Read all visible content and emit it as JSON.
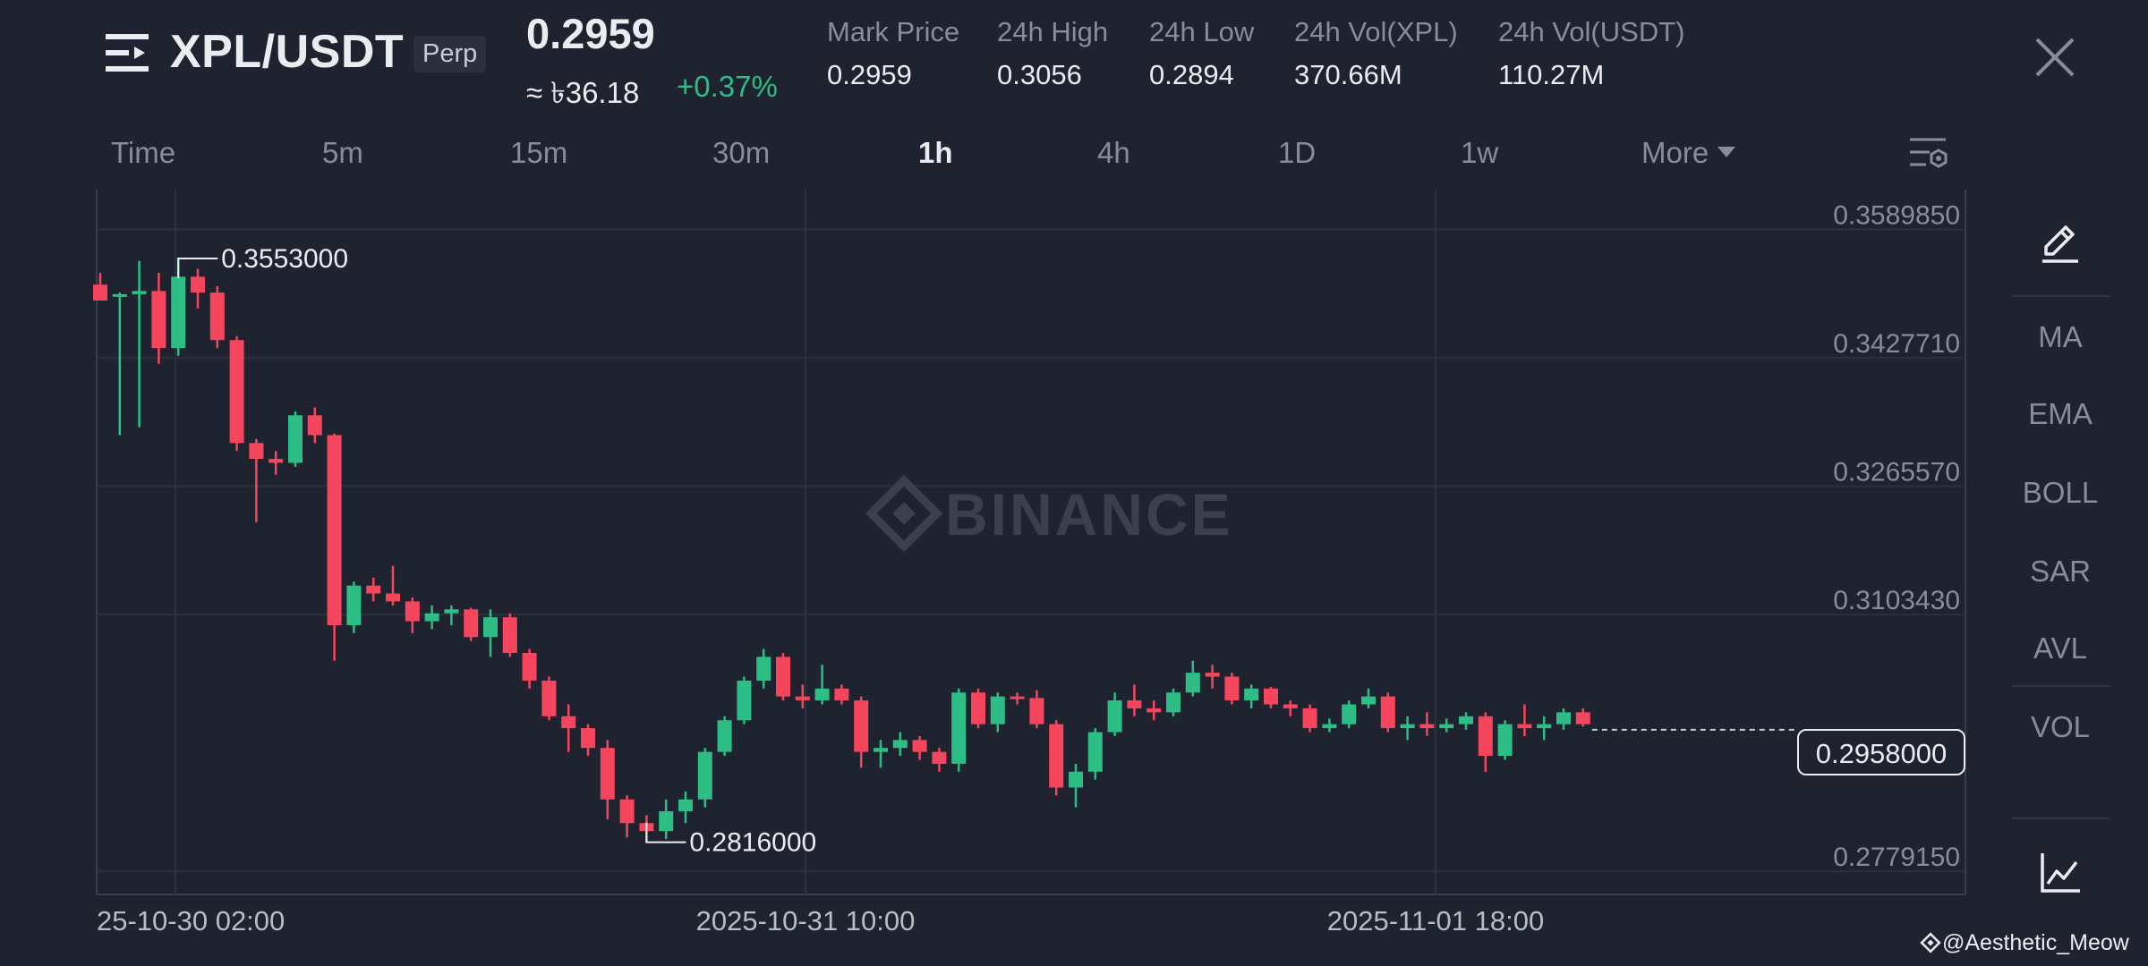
{
  "header": {
    "pair": "XPL/USDT",
    "contract_type": "Perp",
    "last_price": "0.2959",
    "approx_local": "≈ ৳36.18",
    "change_pct": "+0.37%",
    "stats": [
      {
        "label": "Mark Price",
        "value": "0.2959"
      },
      {
        "label": "24h High",
        "value": "0.3056"
      },
      {
        "label": "24h Low",
        "value": "0.2894"
      },
      {
        "label": "24h Vol(XPL)",
        "value": "370.66M"
      },
      {
        "label": "24h Vol(USDT)",
        "value": "110.27M"
      }
    ]
  },
  "intervals": {
    "tabs": [
      "Time",
      "5m",
      "15m",
      "30m",
      "1h",
      "4h",
      "1D",
      "1w"
    ],
    "active": "1h",
    "more_label": "More"
  },
  "chart": {
    "watermark": "BINANCE",
    "current_price_tag": "0.2958000",
    "high_marker": "0.3553000",
    "low_marker": "0.2816000"
  },
  "chart_data": {
    "type": "candlestick",
    "title": "",
    "interval": "1h",
    "y_ticks": [
      "0.3589850",
      "0.3427710",
      "0.3265570",
      "0.3103430",
      "0.2779150"
    ],
    "ylim": [
      0.275,
      0.364
    ],
    "x_ticks": [
      "25-10-30 02:00",
      "2025-10-31 10:00",
      "2025-11-01 18:00"
    ],
    "current_price": 0.2958,
    "high_marker": 0.3553,
    "low_marker": 0.2816,
    "colors": {
      "up": "#2ebd85",
      "down": "#f6465d"
    },
    "candles": [
      [
        0.352,
        0.3535,
        0.3508,
        0.35
      ],
      [
        0.3506,
        0.351,
        0.333,
        0.3508
      ],
      [
        0.3508,
        0.355,
        0.334,
        0.3512
      ],
      [
        0.3512,
        0.3535,
        0.342,
        0.344
      ],
      [
        0.344,
        0.3553,
        0.343,
        0.353
      ],
      [
        0.353,
        0.354,
        0.349,
        0.351
      ],
      [
        0.351,
        0.3518,
        0.344,
        0.345
      ],
      [
        0.345,
        0.3455,
        0.331,
        0.332
      ],
      [
        0.332,
        0.3325,
        0.322,
        0.33
      ],
      [
        0.33,
        0.331,
        0.328,
        0.3295
      ],
      [
        0.3295,
        0.336,
        0.329,
        0.3355
      ],
      [
        0.3355,
        0.3365,
        0.332,
        0.333
      ],
      [
        0.333,
        0.3332,
        0.3045,
        0.309
      ],
      [
        0.309,
        0.3145,
        0.308,
        0.314
      ],
      [
        0.314,
        0.315,
        0.312,
        0.313
      ],
      [
        0.313,
        0.3165,
        0.3115,
        0.312
      ],
      [
        0.312,
        0.3125,
        0.308,
        0.3095
      ],
      [
        0.3095,
        0.3115,
        0.3085,
        0.3105
      ],
      [
        0.3105,
        0.3115,
        0.309,
        0.311
      ],
      [
        0.311,
        0.3112,
        0.307,
        0.3075
      ],
      [
        0.3075,
        0.311,
        0.305,
        0.31
      ],
      [
        0.31,
        0.3105,
        0.305,
        0.3055
      ],
      [
        0.3055,
        0.306,
        0.301,
        0.302
      ],
      [
        0.302,
        0.3025,
        0.297,
        0.2975
      ],
      [
        0.2975,
        0.299,
        0.293,
        0.296
      ],
      [
        0.296,
        0.2965,
        0.2925,
        0.2935
      ],
      [
        0.2935,
        0.2945,
        0.2845,
        0.287
      ],
      [
        0.287,
        0.2875,
        0.2822,
        0.284
      ],
      [
        0.284,
        0.285,
        0.2816,
        0.283
      ],
      [
        0.283,
        0.287,
        0.282,
        0.2855
      ],
      [
        0.2855,
        0.288,
        0.284,
        0.287
      ],
      [
        0.287,
        0.2935,
        0.286,
        0.293
      ],
      [
        0.293,
        0.2975,
        0.2925,
        0.297
      ],
      [
        0.297,
        0.3025,
        0.2965,
        0.302
      ],
      [
        0.302,
        0.306,
        0.301,
        0.305
      ],
      [
        0.305,
        0.3055,
        0.2995,
        0.3
      ],
      [
        0.3,
        0.3015,
        0.2985,
        0.2995
      ],
      [
        0.2995,
        0.304,
        0.299,
        0.301
      ],
      [
        0.301,
        0.3015,
        0.299,
        0.2995
      ],
      [
        0.2995,
        0.3,
        0.291,
        0.293
      ],
      [
        0.293,
        0.2945,
        0.291,
        0.2935
      ],
      [
        0.2935,
        0.2955,
        0.2925,
        0.2945
      ],
      [
        0.2945,
        0.295,
        0.292,
        0.293
      ],
      [
        0.293,
        0.2935,
        0.2905,
        0.2915
      ],
      [
        0.2915,
        0.301,
        0.2905,
        0.3005
      ],
      [
        0.3005,
        0.301,
        0.296,
        0.2965
      ],
      [
        0.2965,
        0.3005,
        0.2955,
        0.3
      ],
      [
        0.3,
        0.3005,
        0.299,
        0.2998
      ],
      [
        0.2998,
        0.3008,
        0.296,
        0.2965
      ],
      [
        0.2965,
        0.297,
        0.2875,
        0.2885
      ],
      [
        0.2885,
        0.2915,
        0.286,
        0.2905
      ],
      [
        0.2905,
        0.296,
        0.2895,
        0.2955
      ],
      [
        0.2955,
        0.3005,
        0.295,
        0.2995
      ],
      [
        0.2995,
        0.3015,
        0.2975,
        0.2985
      ],
      [
        0.2985,
        0.2995,
        0.297,
        0.298
      ],
      [
        0.298,
        0.301,
        0.2975,
        0.3005
      ],
      [
        0.3005,
        0.3045,
        0.3,
        0.303
      ],
      [
        0.303,
        0.304,
        0.301,
        0.3025
      ],
      [
        0.3025,
        0.303,
        0.299,
        0.2995
      ],
      [
        0.2995,
        0.3015,
        0.2985,
        0.301
      ],
      [
        0.301,
        0.3012,
        0.2985,
        0.299
      ],
      [
        0.299,
        0.2995,
        0.2975,
        0.2985
      ],
      [
        0.2985,
        0.299,
        0.2955,
        0.296
      ],
      [
        0.296,
        0.2972,
        0.2955,
        0.2965
      ],
      [
        0.2965,
        0.2995,
        0.296,
        0.299
      ],
      [
        0.299,
        0.301,
        0.2985,
        0.3
      ],
      [
        0.3,
        0.3005,
        0.2955,
        0.296
      ],
      [
        0.296,
        0.2975,
        0.2945,
        0.2965
      ],
      [
        0.2965,
        0.298,
        0.295,
        0.296
      ],
      [
        0.296,
        0.2972,
        0.2955,
        0.2965
      ],
      [
        0.2965,
        0.298,
        0.2958,
        0.2975
      ],
      [
        0.2975,
        0.298,
        0.2905,
        0.2925
      ],
      [
        0.2925,
        0.297,
        0.292,
        0.2965
      ],
      [
        0.2965,
        0.299,
        0.295,
        0.296
      ],
      [
        0.296,
        0.2975,
        0.2945,
        0.2965
      ],
      [
        0.2965,
        0.2985,
        0.2958,
        0.298
      ],
      [
        0.298,
        0.2985,
        0.2962,
        0.2965
      ]
    ]
  },
  "sidebar": {
    "indicators": [
      "MA",
      "EMA",
      "BOLL",
      "SAR",
      "AVL",
      "VOL"
    ]
  },
  "footer": {
    "credit": "@Aesthetic_Meow"
  }
}
